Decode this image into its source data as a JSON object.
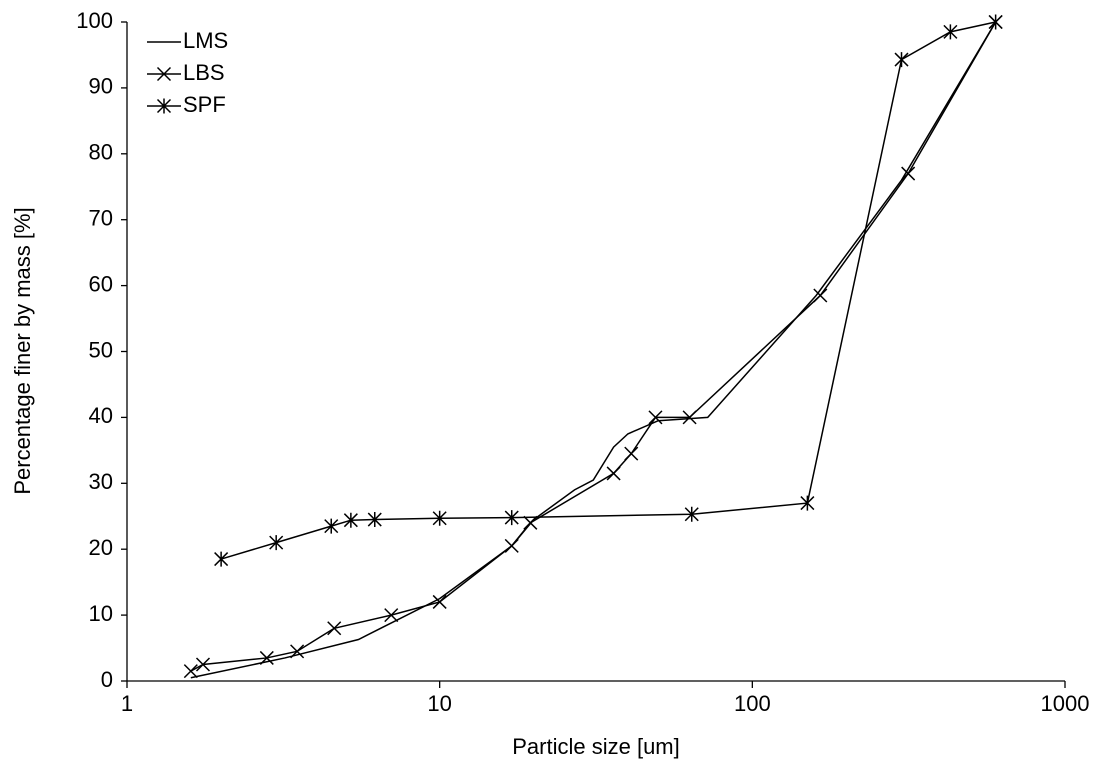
{
  "chart_data": {
    "type": "line",
    "x_label": "Particle size [um]",
    "y_label": "Percentage finer by mass [%]",
    "xscale": "log",
    "xlim": [
      1,
      1000
    ],
    "xticks": [
      1,
      10,
      100,
      1000
    ],
    "ylim": [
      0,
      100
    ],
    "yticks": [
      0,
      10,
      20,
      30,
      40,
      50,
      60,
      70,
      80,
      90,
      100
    ],
    "grid": false,
    "legend": "upper left",
    "series": [
      {
        "name": "LMS",
        "color": "#000000",
        "marker": "none",
        "x": [
          1.6,
          3.2,
          5.5,
          10,
          17,
          20,
          27,
          31,
          36,
          40,
          50,
          72,
          160,
          300,
          600
        ],
        "values": [
          0.5,
          3.5,
          6.3,
          12.5,
          20.5,
          24.5,
          29,
          30.5,
          35.5,
          37.5,
          39.5,
          40,
          58.5,
          76,
          100
        ]
      },
      {
        "name": "LBS",
        "color": "#000000",
        "marker": "x",
        "x": [
          1.6,
          1.75,
          2.8,
          3.5,
          4.6,
          7,
          10,
          17,
          19.5,
          36,
          41,
          49,
          63,
          165,
          315,
          600
        ],
        "values": [
          1.5,
          2.5,
          3.5,
          4.5,
          8,
          10,
          12,
          20.5,
          24,
          31.5,
          34.5,
          40,
          40,
          58.5,
          77,
          100
        ]
      },
      {
        "name": "SPF",
        "color": "#000000",
        "marker": "asterisk",
        "x": [
          2,
          3,
          4.5,
          5.2,
          6.2,
          10,
          17,
          64,
          150,
          300,
          430,
          600
        ],
        "values": [
          18.5,
          21,
          23.5,
          24.4,
          24.5,
          24.7,
          24.8,
          25.3,
          27,
          94.3,
          98.5,
          100
        ]
      }
    ]
  }
}
